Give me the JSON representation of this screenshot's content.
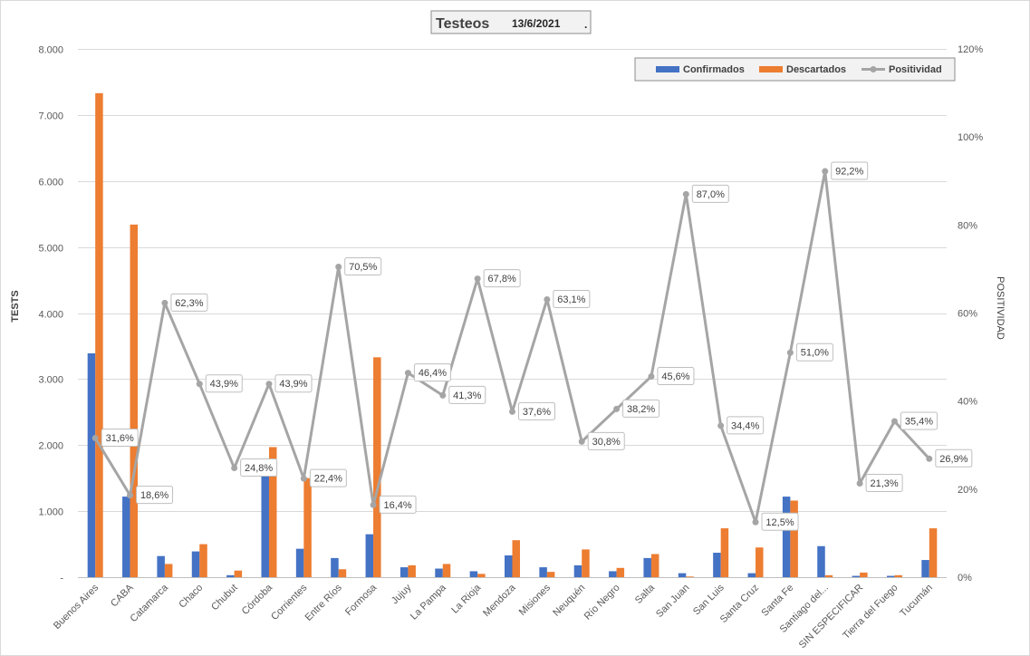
{
  "chart_data": {
    "type": "bar",
    "title": "Testeos",
    "subtitle": "13/6/2021",
    "title_suffix": ".",
    "ylabel": "TESTS",
    "y2label": "POSITIVIDAD",
    "ylim": [
      0,
      8000
    ],
    "y_ticks": [
      0,
      1000,
      2000,
      3000,
      4000,
      5000,
      6000,
      7000,
      8000
    ],
    "y_tick_labels": [
      "-",
      "1.000",
      "2.000",
      "3.000",
      "4.000",
      "5.000",
      "6.000",
      "7.000",
      "8.000"
    ],
    "y2lim": [
      0,
      120
    ],
    "y2_ticks": [
      0,
      20,
      40,
      60,
      80,
      100,
      120
    ],
    "y2_tick_labels": [
      "0%",
      "20%",
      "40%",
      "60%",
      "80%",
      "100%",
      "120%"
    ],
    "grid": true,
    "legend_position": "top-right",
    "categories": [
      "Buenos Aires",
      "CABA",
      "Catamarca",
      "Chaco",
      "Chubut",
      "Córdoba",
      "Corrientes",
      "Entre Ríos",
      "Formosa",
      "Jujuy",
      "La Pampa",
      "La Rioja",
      "Mendoza",
      "Misiones",
      "Neuquén",
      "Río Negro",
      "Salta",
      "San Juan",
      "San Luis",
      "Santa Cruz",
      "Santa Fe",
      "Santiago del...",
      "SIN ESPECIFICAR",
      "Tierra del Fuego",
      "Tucumán"
    ],
    "series": [
      {
        "name": "Confirmados",
        "kind": "bar",
        "axis": "left",
        "color": "#4472C4",
        "values": [
          3390,
          1220,
          320,
          390,
          30,
          1560,
          430,
          290,
          650,
          150,
          130,
          90,
          330,
          150,
          180,
          90,
          290,
          60,
          370,
          60,
          1220,
          470,
          20,
          20,
          260
        ]
      },
      {
        "name": "Descartados",
        "kind": "bar",
        "axis": "left",
        "color": "#ED7D31",
        "values": [
          7330,
          5340,
          200,
          500,
          100,
          1970,
          1500,
          120,
          3330,
          180,
          200,
          50,
          560,
          80,
          420,
          140,
          350,
          10,
          740,
          450,
          1160,
          30,
          70,
          30,
          740
        ]
      },
      {
        "name": "Positividad",
        "kind": "line",
        "axis": "right",
        "color": "#A5A5A5",
        "values": [
          31.6,
          18.6,
          62.3,
          43.9,
          24.8,
          43.9,
          22.4,
          70.5,
          16.4,
          46.4,
          41.3,
          67.8,
          37.6,
          63.1,
          30.8,
          38.2,
          45.6,
          87.0,
          34.4,
          12.5,
          51.0,
          92.2,
          21.3,
          35.4,
          26.9
        ],
        "labels": [
          "31,6%",
          "18,6%",
          "62,3%",
          "43,9%",
          "24,8%",
          "43,9%",
          "22,4%",
          "70,5%",
          "16,4%",
          "46,4%",
          "41,3%",
          "67,8%",
          "37,6%",
          "63,1%",
          "30,8%",
          "38,2%",
          "45,6%",
          "87,0%",
          "34,4%",
          "12,5%",
          "51,0%",
          "92,2%",
          "21,3%",
          "35,4%",
          "26,9%"
        ]
      }
    ]
  }
}
